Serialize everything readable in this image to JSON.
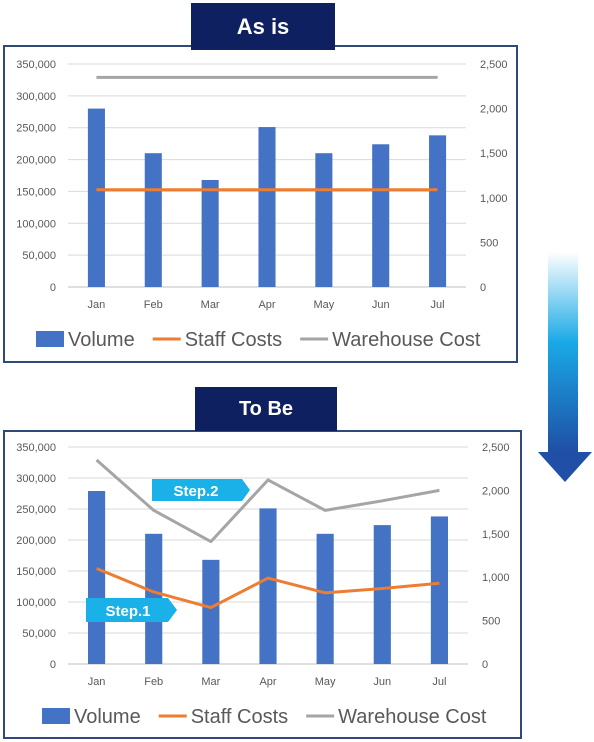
{
  "labels": {
    "as_is": "As is",
    "to_be": "To Be",
    "step1": "Step.1",
    "step2": "Step.2"
  },
  "colors": {
    "volume": "#4472c4",
    "staff": "#ed7d31",
    "warehouse": "#a5a5a5",
    "banner": "#0f2060",
    "callout": "#1ab0e8"
  },
  "chart_data": [
    {
      "type": "bar",
      "title": "As is",
      "categories": [
        "Jan",
        "Feb",
        "Mar",
        "Apr",
        "May",
        "Jun",
        "Jul"
      ],
      "ylim": [
        0,
        350000
      ],
      "y2lim": [
        0,
        2500
      ],
      "yticks": [
        "0",
        "50,000",
        "100,000",
        "150,000",
        "200,000",
        "250,000",
        "300,000",
        "350,000"
      ],
      "y2ticks": [
        "0",
        "500",
        "1,000",
        "1,500",
        "2,000",
        "2,500"
      ],
      "series": [
        {
          "name": "Volume",
          "type": "bar",
          "axis": "left",
          "values": [
            280000,
            210000,
            168000,
            251000,
            210000,
            224000,
            238000
          ]
        },
        {
          "name": "Staff Costs",
          "type": "line",
          "axis": "right",
          "values": [
            1090,
            1090,
            1090,
            1090,
            1090,
            1090,
            1090
          ]
        },
        {
          "name": "Warehouse Cost",
          "type": "line",
          "axis": "right",
          "values": [
            2350,
            2350,
            2350,
            2350,
            2350,
            2350,
            2350
          ]
        }
      ],
      "legend": "bottom",
      "grid": true
    },
    {
      "type": "bar",
      "title": "To Be",
      "categories": [
        "Jan",
        "Feb",
        "Mar",
        "Apr",
        "May",
        "Jun",
        "Jul"
      ],
      "ylim": [
        0,
        350000
      ],
      "y2lim": [
        0,
        2500
      ],
      "yticks": [
        "0",
        "50,000",
        "100,000",
        "150,000",
        "200,000",
        "250,000",
        "300,000",
        "350,000"
      ],
      "y2ticks": [
        "0",
        "500",
        "1,000",
        "1,500",
        "2,000",
        "2,500"
      ],
      "series": [
        {
          "name": "Volume",
          "type": "bar",
          "axis": "left",
          "values": [
            279000,
            210000,
            168000,
            251000,
            210000,
            224000,
            238000
          ]
        },
        {
          "name": "Staff Costs",
          "type": "line",
          "axis": "right",
          "values": [
            1100,
            830,
            650,
            990,
            820,
            870,
            930
          ]
        },
        {
          "name": "Warehouse Cost",
          "type": "line",
          "axis": "right",
          "values": [
            2350,
            1770,
            1410,
            2120,
            1770,
            1880,
            2000
          ]
        }
      ],
      "legend": "bottom",
      "grid": true
    }
  ]
}
